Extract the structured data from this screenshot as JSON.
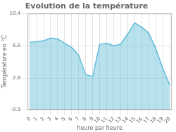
{
  "chart_data": {
    "type": "area",
    "title": "Evolution de la température",
    "x_label": "heure par heure",
    "y_label": "Température en °C",
    "x": [
      0,
      1,
      2,
      3,
      4,
      5,
      6,
      7,
      8,
      9,
      10,
      11,
      12,
      13,
      14,
      15,
      16,
      17,
      18,
      19,
      20
    ],
    "values": [
      7.0,
      7.1,
      7.2,
      7.5,
      7.4,
      6.9,
      6.4,
      5.5,
      3.2,
      3.0,
      6.8,
      6.9,
      6.6,
      6.8,
      8.0,
      9.3,
      8.8,
      8.1,
      6.3,
      4.0,
      2.0
    ],
    "color": "#60bdd8",
    "xlim": [
      -0.3,
      20.3
    ],
    "xticks": [
      0,
      1,
      2,
      3,
      4,
      5,
      6,
      7,
      8,
      9,
      10,
      11,
      12,
      13,
      14,
      15,
      16,
      17,
      18,
      19,
      20
    ],
    "ylim": [
      -0.9,
      10.4
    ],
    "yticks": [
      -0.9,
      2.8,
      6.6,
      10.4
    ],
    "grid": true
  }
}
